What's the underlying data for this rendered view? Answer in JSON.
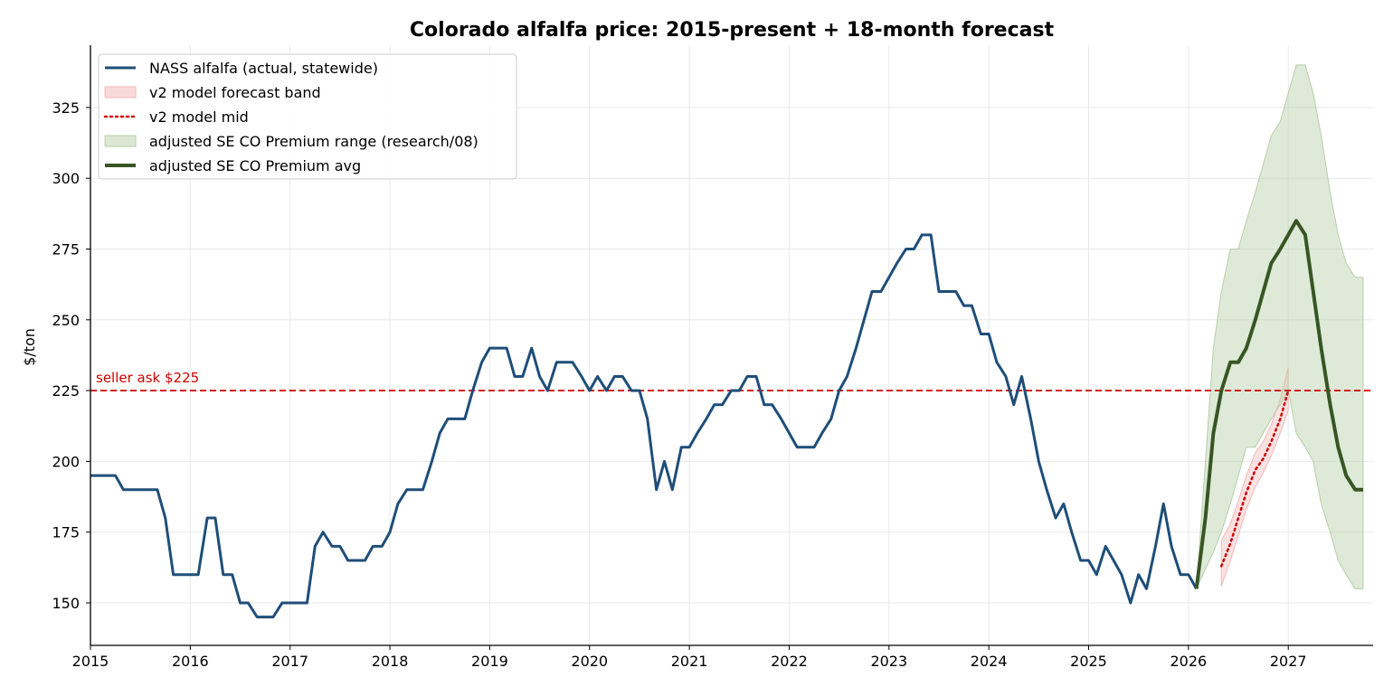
{
  "chart_data": {
    "type": "line",
    "title": "Colorado alfalfa price: 2015-present + 18-month forecast",
    "xlabel": "",
    "ylabel": "$/ton",
    "xlim": [
      2015.0,
      2027.85
    ],
    "ylim": [
      135,
      347
    ],
    "grid": true,
    "legend_position": "top-left",
    "x_ticks": [
      {
        "value": 2015,
        "label": "2015"
      },
      {
        "value": 2016,
        "label": "2016"
      },
      {
        "value": 2017,
        "label": "2017"
      },
      {
        "value": 2018,
        "label": "2018"
      },
      {
        "value": 2019,
        "label": "2019"
      },
      {
        "value": 2020,
        "label": "2020"
      },
      {
        "value": 2021,
        "label": "2021"
      },
      {
        "value": 2022,
        "label": "2022"
      },
      {
        "value": 2023,
        "label": "2023"
      },
      {
        "value": 2024,
        "label": "2024"
      },
      {
        "value": 2025,
        "label": "2025"
      },
      {
        "value": 2026,
        "label": "2026"
      },
      {
        "value": 2027,
        "label": "2027"
      }
    ],
    "y_ticks": [
      {
        "value": 150,
        "label": "150"
      },
      {
        "value": 175,
        "label": "175"
      },
      {
        "value": 200,
        "label": "200"
      },
      {
        "value": 225,
        "label": "225"
      },
      {
        "value": 250,
        "label": "250"
      },
      {
        "value": 275,
        "label": "275"
      },
      {
        "value": 300,
        "label": "300"
      },
      {
        "value": 325,
        "label": "325"
      }
    ],
    "reference_line": {
      "y": 225,
      "label": "seller ask $225",
      "color": "#cc0000"
    },
    "series": [
      {
        "name": "NASS alfalfa (actual, statewide)",
        "kind": "line",
        "color": "#1f4e79",
        "points": [
          [
            2015.0,
            195
          ],
          [
            2015.25,
            195
          ],
          [
            2015.33,
            190
          ],
          [
            2015.67,
            190
          ],
          [
            2015.75,
            180
          ],
          [
            2015.83,
            160
          ],
          [
            2016.08,
            160
          ],
          [
            2016.17,
            180
          ],
          [
            2016.25,
            180
          ],
          [
            2016.33,
            160
          ],
          [
            2016.42,
            160
          ],
          [
            2016.5,
            150
          ],
          [
            2016.58,
            150
          ],
          [
            2016.67,
            145
          ],
          [
            2016.83,
            145
          ],
          [
            2016.92,
            150
          ],
          [
            2017.17,
            150
          ],
          [
            2017.25,
            170
          ],
          [
            2017.33,
            175
          ],
          [
            2017.42,
            170
          ],
          [
            2017.5,
            170
          ],
          [
            2017.58,
            165
          ],
          [
            2017.75,
            165
          ],
          [
            2017.83,
            170
          ],
          [
            2017.92,
            170
          ],
          [
            2018.0,
            175
          ],
          [
            2018.08,
            185
          ],
          [
            2018.17,
            190
          ],
          [
            2018.33,
            190
          ],
          [
            2018.42,
            200
          ],
          [
            2018.5,
            210
          ],
          [
            2018.58,
            215
          ],
          [
            2018.75,
            215
          ],
          [
            2018.83,
            225
          ],
          [
            2018.92,
            235
          ],
          [
            2019.0,
            240
          ],
          [
            2019.17,
            240
          ],
          [
            2019.25,
            230
          ],
          [
            2019.33,
            230
          ],
          [
            2019.42,
            240
          ],
          [
            2019.5,
            230
          ],
          [
            2019.58,
            225
          ],
          [
            2019.67,
            235
          ],
          [
            2019.83,
            235
          ],
          [
            2019.92,
            230
          ],
          [
            2020.0,
            225
          ],
          [
            2020.08,
            230
          ],
          [
            2020.17,
            225
          ],
          [
            2020.25,
            230
          ],
          [
            2020.33,
            230
          ],
          [
            2020.42,
            225
          ],
          [
            2020.5,
            225
          ],
          [
            2020.58,
            215
          ],
          [
            2020.67,
            190
          ],
          [
            2020.75,
            200
          ],
          [
            2020.83,
            190
          ],
          [
            2020.92,
            205
          ],
          [
            2021.0,
            205
          ],
          [
            2021.08,
            210
          ],
          [
            2021.17,
            215
          ],
          [
            2021.25,
            220
          ],
          [
            2021.33,
            220
          ],
          [
            2021.42,
            225
          ],
          [
            2021.5,
            225
          ],
          [
            2021.58,
            230
          ],
          [
            2021.67,
            230
          ],
          [
            2021.75,
            220
          ],
          [
            2021.83,
            220
          ],
          [
            2021.92,
            215
          ],
          [
            2022.0,
            210
          ],
          [
            2022.08,
            205
          ],
          [
            2022.25,
            205
          ],
          [
            2022.33,
            210
          ],
          [
            2022.42,
            215
          ],
          [
            2022.5,
            225
          ],
          [
            2022.58,
            230
          ],
          [
            2022.67,
            240
          ],
          [
            2022.75,
            250
          ],
          [
            2022.83,
            260
          ],
          [
            2022.92,
            260
          ],
          [
            2023.0,
            265
          ],
          [
            2023.08,
            270
          ],
          [
            2023.17,
            275
          ],
          [
            2023.25,
            275
          ],
          [
            2023.33,
            280
          ],
          [
            2023.42,
            280
          ],
          [
            2023.5,
            260
          ],
          [
            2023.67,
            260
          ],
          [
            2023.75,
            255
          ],
          [
            2023.83,
            255
          ],
          [
            2023.92,
            245
          ],
          [
            2024.0,
            245
          ],
          [
            2024.08,
            235
          ],
          [
            2024.17,
            230
          ],
          [
            2024.25,
            220
          ],
          [
            2024.33,
            230
          ],
          [
            2024.42,
            215
          ],
          [
            2024.5,
            200
          ],
          [
            2024.58,
            190
          ],
          [
            2024.67,
            180
          ],
          [
            2024.75,
            185
          ],
          [
            2024.83,
            175
          ],
          [
            2024.92,
            165
          ],
          [
            2025.0,
            165
          ],
          [
            2025.08,
            160
          ],
          [
            2025.17,
            170
          ],
          [
            2025.25,
            165
          ],
          [
            2025.33,
            160
          ],
          [
            2025.42,
            150
          ],
          [
            2025.5,
            160
          ],
          [
            2025.58,
            155
          ],
          [
            2025.67,
            170
          ],
          [
            2025.75,
            185
          ],
          [
            2025.83,
            170
          ],
          [
            2025.92,
            160
          ],
          [
            2026.0,
            160
          ],
          [
            2026.08,
            155
          ]
        ]
      },
      {
        "name": "v2 model forecast band",
        "kind": "band",
        "color": "#f4b6b6",
        "x": [
          2026.33,
          2026.42,
          2026.5,
          2026.58,
          2026.67,
          2026.75,
          2026.83,
          2026.92,
          2027.0
        ],
        "low": [
          156,
          165,
          174,
          183,
          191,
          196,
          202,
          210,
          218
        ],
        "high": [
          172,
          178,
          186,
          195,
          203,
          207,
          213,
          222,
          233
        ]
      },
      {
        "name": "v2 model mid",
        "kind": "dotted",
        "color": "#cc0000",
        "x": [
          2026.33,
          2026.42,
          2026.5,
          2026.58,
          2026.67,
          2026.75,
          2026.83,
          2026.92,
          2027.0
        ],
        "values": [
          163,
          171,
          180,
          189,
          197,
          201,
          207,
          215,
          225
        ]
      },
      {
        "name": "adjusted SE CO Premium range (research/08)",
        "kind": "band",
        "color": "#b7cfa8",
        "x": [
          2026.08,
          2026.17,
          2026.25,
          2026.33,
          2026.42,
          2026.5,
          2026.58,
          2026.67,
          2026.75,
          2026.83,
          2026.92,
          2027.0,
          2027.08,
          2027.17,
          2027.25,
          2027.33,
          2027.42,
          2027.5,
          2027.58,
          2027.67,
          2027.75
        ],
        "low": [
          155,
          162,
          168,
          175,
          185,
          195,
          205,
          205,
          210,
          215,
          220,
          225,
          210,
          205,
          200,
          185,
          175,
          165,
          160,
          155,
          155
        ],
        "high": [
          155,
          200,
          240,
          260,
          275,
          275,
          285,
          295,
          305,
          315,
          320,
          330,
          340,
          340,
          330,
          315,
          295,
          280,
          270,
          265,
          265
        ]
      },
      {
        "name": "adjusted SE CO Premium avg",
        "kind": "line",
        "color": "#375623",
        "x": [
          2026.08,
          2026.17,
          2026.25,
          2026.33,
          2026.42,
          2026.5,
          2026.58,
          2026.67,
          2026.75,
          2026.83,
          2026.92,
          2027.0,
          2027.08,
          2027.17,
          2027.25,
          2027.33,
          2027.42,
          2027.5,
          2027.58,
          2027.67,
          2027.75
        ],
        "values": [
          155,
          180,
          210,
          225,
          235,
          235,
          240,
          250,
          260,
          270,
          275,
          280,
          285,
          280,
          260,
          240,
          220,
          205,
          195,
          190,
          190
        ]
      }
    ]
  }
}
